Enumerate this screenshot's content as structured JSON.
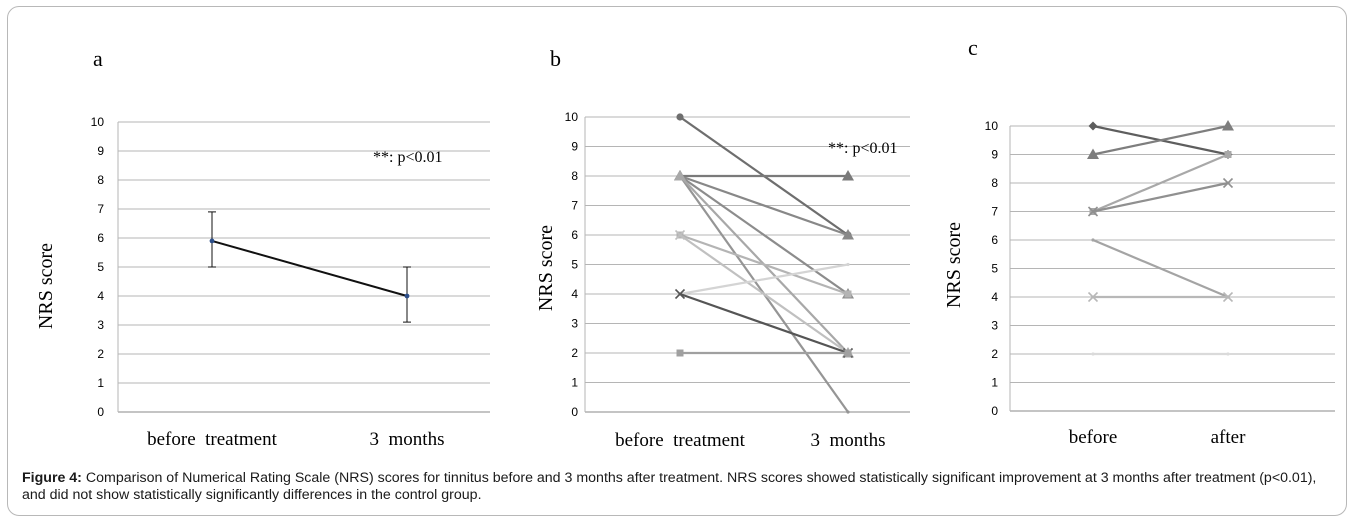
{
  "caption": {
    "label": "Figure 4:",
    "text": "Comparison of Numerical Rating Scale (NRS) scores for tinnitus before and 3 months after treatment. NRS scores showed statistically significant improvement at 3 months after treatment (p<0.01), and did not show statistically significantly differences in the control group."
  },
  "chart_data": [
    {
      "panel": "a",
      "type": "line",
      "categories": [
        "before  treatment",
        "3  months"
      ],
      "ylabel": "NRS score",
      "ylim": [
        0,
        10
      ],
      "yticks": [
        "0",
        "1",
        "2",
        "3",
        "4",
        "5",
        "6",
        "7",
        "8",
        "9",
        "10"
      ],
      "grid": true,
      "annotation": "**: p<0.01",
      "series": [
        {
          "values": [
            5.9,
            4.0
          ],
          "error": [
            [
              5.0,
              6.9
            ],
            [
              3.1,
              5.0
            ]
          ],
          "color": "#111111"
        }
      ]
    },
    {
      "panel": "b",
      "type": "line",
      "categories": [
        "before  treatment",
        "3  months"
      ],
      "ylabel": "NRS score",
      "ylim": [
        0,
        10
      ],
      "yticks": [
        "0",
        "1",
        "2",
        "3",
        "4",
        "5",
        "6",
        "7",
        "8",
        "9",
        "10"
      ],
      "grid": true,
      "annotation": "**: p<0.01",
      "series": [
        {
          "values": [
            10,
            6
          ],
          "color": "#6e6e6e",
          "marker": "circle"
        },
        {
          "values": [
            8,
            8
          ],
          "color": "#7a7a7a",
          "marker": "triangle"
        },
        {
          "values": [
            8,
            6
          ],
          "color": "#888888",
          "marker": "triangle"
        },
        {
          "values": [
            8,
            4
          ],
          "color": "#8c8c8c",
          "marker": "triangle"
        },
        {
          "values": [
            8,
            0
          ],
          "color": "#959595",
          "marker": "none"
        },
        {
          "values": [
            8,
            2
          ],
          "color": "#a8a8a8",
          "marker": "triangle"
        },
        {
          "values": [
            6,
            4
          ],
          "color": "#b4b4b4",
          "marker": "square"
        },
        {
          "values": [
            6,
            2
          ],
          "color": "#c0c0c0",
          "marker": "cross"
        },
        {
          "values": [
            4,
            5
          ],
          "color": "#d4d4d4",
          "marker": "none"
        },
        {
          "values": [
            4,
            2
          ],
          "color": "#555555",
          "marker": "cross"
        },
        {
          "values": [
            2,
            2
          ],
          "color": "#a0a0a0",
          "marker": "square"
        }
      ]
    },
    {
      "panel": "c",
      "type": "line",
      "categories": [
        "before",
        "after"
      ],
      "ylabel": "NRS score",
      "ylim": [
        0,
        10
      ],
      "yticks": [
        "0",
        "1",
        "2",
        "3",
        "4",
        "5",
        "6",
        "7",
        "8",
        "9",
        "10"
      ],
      "grid": true,
      "series": [
        {
          "values": [
            10,
            9
          ],
          "color": "#5e5e5e",
          "marker": "diamond"
        },
        {
          "values": [
            9,
            10
          ],
          "color": "#7e7e7e",
          "marker": "triangle"
        },
        {
          "values": [
            7,
            9
          ],
          "color": "#a8a8a8",
          "marker": "square"
        },
        {
          "values": [
            7,
            8
          ],
          "color": "#909090",
          "marker": "cross"
        },
        {
          "values": [
            6,
            4
          ],
          "color": "#a4a4a4",
          "marker": "none"
        },
        {
          "values": [
            4,
            4
          ],
          "color": "#b8b8b8",
          "marker": "cross"
        },
        {
          "values": [
            2,
            2
          ],
          "color": "#dadada",
          "marker": "none"
        }
      ]
    }
  ]
}
